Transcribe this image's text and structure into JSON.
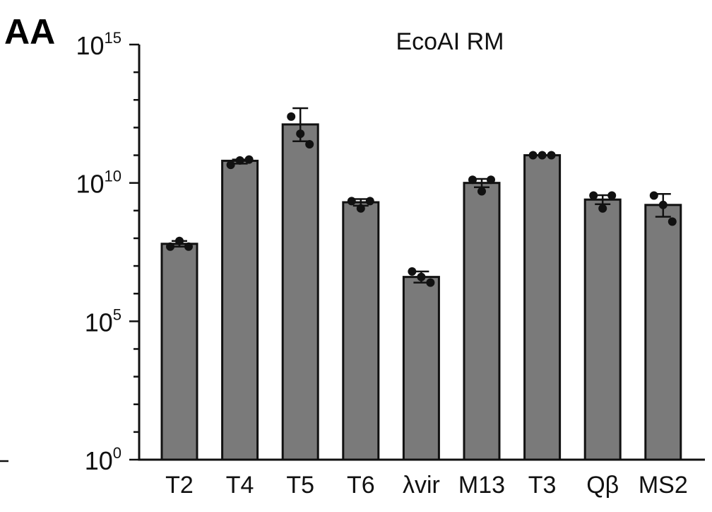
{
  "panel_label": "AA",
  "chart_data": {
    "type": "bar",
    "title": "EcoAI RM",
    "xlabel": "",
    "ylabel": "",
    "yscale": "log",
    "ylim": [
      1,
      1000000000000000.0
    ],
    "grid": false,
    "legend": "none",
    "colors": {
      "bar": "#7a7a7a",
      "outline": "#111111",
      "points": "#111111"
    },
    "categories": [
      "T2",
      "T4",
      "T5",
      "T6",
      "λvir",
      "M13",
      "T3",
      "Qβ",
      "MS2"
    ],
    "values": [
      63000000.0,
      63000000000.0,
      1300000000000.0,
      2000000000.0,
      4000000.0,
      10000000000.0,
      100000000000.0,
      2500000000.0,
      1600000000.0
    ],
    "error": [
      [
        50000000.0,
        80000000.0
      ],
      [
        50000000000.0,
        70000000000.0
      ],
      [
        320000000000.0,
        5000000000000.0
      ],
      [
        1500000000.0,
        2600000000.0
      ],
      [
        2500000.0,
        6300000.0
      ],
      [
        7000000000.0,
        14000000000.0
      ],
      [
        100000000000.0,
        100000000000.0
      ],
      [
        1700000000.0,
        3600000000.0
      ],
      [
        600000000.0,
        4000000000.0
      ]
    ],
    "points": [
      [
        50000000.0,
        80000000.0,
        50000000.0
      ],
      [
        45000000000.0,
        65000000000.0,
        70000000000.0
      ],
      [
        2500000000000.0,
        600000000000.0,
        250000000000.0
      ],
      [
        2200000000.0,
        1200000000.0,
        2200000000.0
      ],
      [
        6300000.0,
        4000000.0,
        2500000.0
      ],
      [
        13000000000.0,
        5000000000.0,
        13000000000.0
      ],
      [
        100000000000.0,
        100000000000.0,
        100000000000.0
      ],
      [
        3500000000.0,
        1200000000.0,
        3500000000.0
      ],
      [
        3500000000.0,
        1600000000.0,
        400000000.0
      ]
    ],
    "yticks": [
      {
        "base": "10",
        "exp": "0",
        "value": 1
      },
      {
        "base": "10",
        "exp": "5",
        "value": 100000.0
      },
      {
        "base": "10",
        "exp": "10",
        "value": 10000000000.0
      },
      {
        "base": "10",
        "exp": "15",
        "value": 1000000000000000.0
      }
    ]
  }
}
